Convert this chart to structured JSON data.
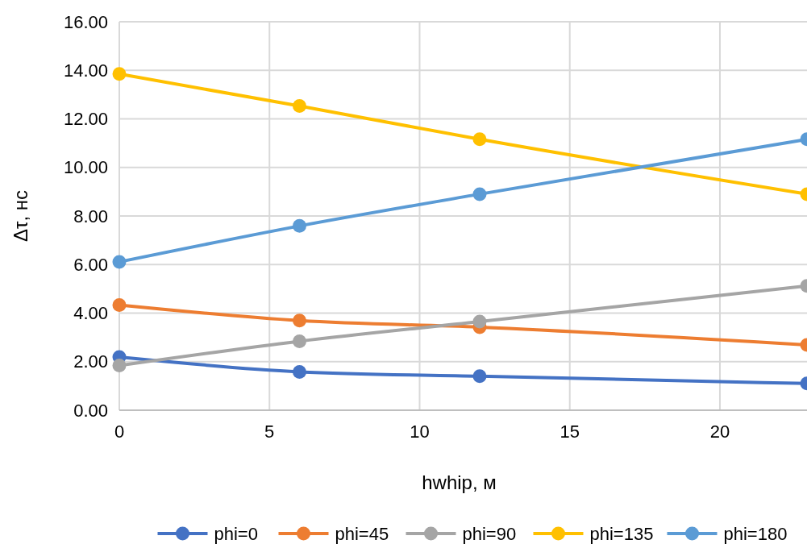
{
  "chart_data": {
    "type": "line",
    "xlabel": "hwhip, м",
    "ylabel": "Δτ, нс",
    "xlim": [
      0,
      22.9
    ],
    "xticks": [
      0,
      5,
      10,
      15,
      20
    ],
    "ylim": [
      0,
      16
    ],
    "yticks": [
      {
        "value": 0,
        "label": "0.00"
      },
      {
        "value": 2,
        "label": "2.00"
      },
      {
        "value": 4,
        "label": "4.00"
      },
      {
        "value": 6,
        "label": "6.00"
      },
      {
        "value": 8,
        "label": "8.00"
      },
      {
        "value": 10,
        "label": "10.00"
      },
      {
        "value": 12,
        "label": "12.00"
      },
      {
        "value": 14,
        "label": "14.00"
      },
      {
        "value": 16,
        "label": "16.00"
      }
    ],
    "x": [
      0,
      6,
      12,
      22.9
    ],
    "grid": true,
    "legend": "bottom",
    "marker": "circle",
    "line_style": "solid",
    "series": [
      {
        "name": "phi=0",
        "color": "#4472c4",
        "values": [
          2.19,
          1.58,
          1.4,
          1.1
        ]
      },
      {
        "name": "phi=45",
        "color": "#ed7d31",
        "values": [
          4.33,
          3.69,
          3.42,
          2.69
        ]
      },
      {
        "name": "phi=90",
        "color": "#a5a5a5",
        "values": [
          1.84,
          2.84,
          3.65,
          5.12
        ]
      },
      {
        "name": "phi=135",
        "color": "#ffc000",
        "values": [
          13.85,
          12.53,
          11.16,
          8.9
        ]
      },
      {
        "name": "phi=180",
        "color": "#5b9bd5",
        "values": [
          6.11,
          7.59,
          8.9,
          11.16
        ]
      }
    ]
  }
}
